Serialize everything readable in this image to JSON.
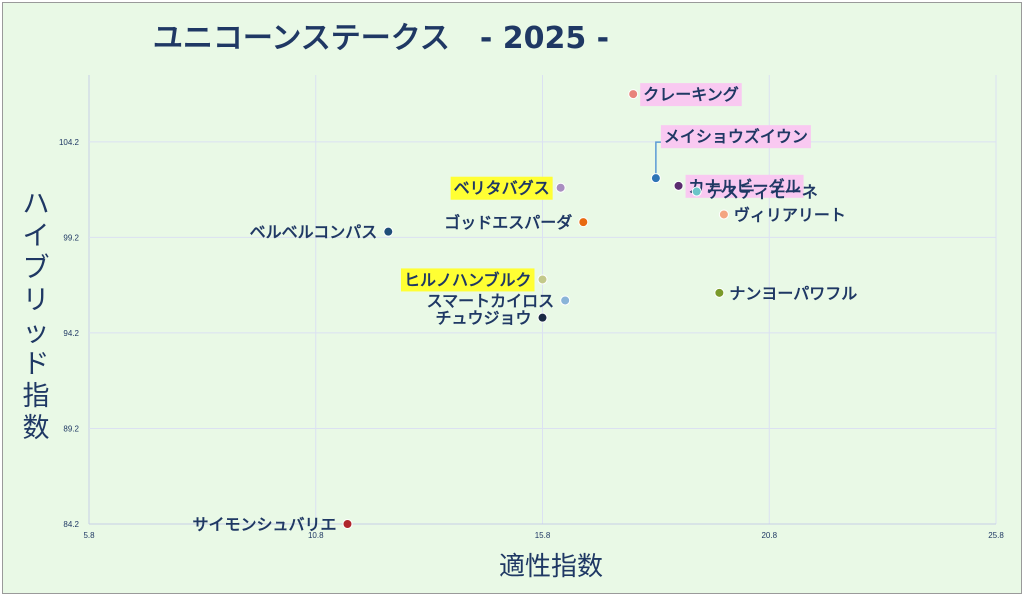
{
  "chart_data": {
    "type": "scatter",
    "title": "ユニコーンステークス　- 2025 -",
    "xlabel": "適性指数",
    "ylabel": "ハイブリッド指数",
    "xlim": [
      5.8,
      25.8
    ],
    "ylim": [
      84.2,
      107.7
    ],
    "x_ticks": [
      "5.8",
      "10.8",
      "15.8",
      "20.8",
      "25.8"
    ],
    "y_ticks": [
      "84.2",
      "89.2",
      "94.2",
      "99.2",
      "104.2"
    ],
    "grid": true,
    "points": [
      {
        "name": "クレーキング",
        "x": 17.8,
        "y": 106.7,
        "color": "#e8847c",
        "highlight": "#f9c9f1",
        "label_side": "right"
      },
      {
        "name": "メイショウズイウン",
        "x": 18.3,
        "y": 102.3,
        "color": "#2e75b6",
        "highlight": "#f9c9f1",
        "label_side": "callout"
      },
      {
        "name": "カナルビーグル",
        "x": 18.8,
        "y": 101.9,
        "color": "#5b2c6f",
        "highlight": "#f9c9f1",
        "label_side": "right"
      },
      {
        "name": "テスティモーネ",
        "x": 19.2,
        "y": 101.6,
        "color": "#6cc5c9",
        "highlight": "",
        "label_side": "right"
      },
      {
        "name": "ヴィリアリート",
        "x": 19.8,
        "y": 100.4,
        "color": "#f4a582",
        "highlight": "",
        "label_side": "right"
      },
      {
        "name": "ナンヨーパワフル",
        "x": 19.7,
        "y": 96.3,
        "color": "#7a9a2a",
        "highlight": "",
        "label_side": "right"
      },
      {
        "name": "ベリタバグス",
        "x": 16.2,
        "y": 101.8,
        "color": "#a98fc0",
        "highlight": "#ffff33",
        "label_side": "left"
      },
      {
        "name": "ゴッドエスパーダ",
        "x": 16.7,
        "y": 100.0,
        "color": "#e86a10",
        "highlight": "",
        "label_side": "left"
      },
      {
        "name": "ベルベルコンパス",
        "x": 12.4,
        "y": 99.5,
        "color": "#1f4e79",
        "highlight": "",
        "label_side": "left"
      },
      {
        "name": "ヒルノハンブルク",
        "x": 15.8,
        "y": 97.0,
        "color": "#c3c98a",
        "highlight": "#ffff33",
        "label_side": "left"
      },
      {
        "name": "スマートカイロス",
        "x": 16.3,
        "y": 95.9,
        "color": "#8ab4d8",
        "highlight": "",
        "label_side": "left"
      },
      {
        "name": "チュウジョウ",
        "x": 15.8,
        "y": 95.0,
        "color": "#1a2a44",
        "highlight": "",
        "label_side": "left"
      },
      {
        "name": "サイモンシュバリエ",
        "x": 11.5,
        "y": 84.2,
        "color": "#b0262c",
        "highlight": "",
        "label_side": "left"
      }
    ]
  }
}
